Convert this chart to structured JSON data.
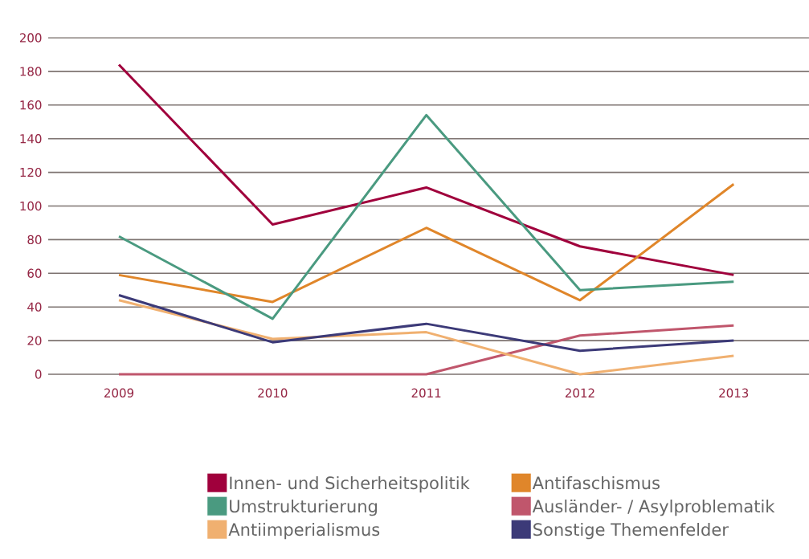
{
  "chart_data": {
    "type": "line",
    "categories": [
      "2009",
      "2010",
      "2011",
      "2012",
      "2013"
    ],
    "series": [
      {
        "name": "Innen- und Sicherheitspolitik",
        "color": "#a0003c",
        "values": [
          184,
          89,
          111,
          76,
          59
        ]
      },
      {
        "name": "Antifaschismus",
        "color": "#e0862a",
        "values": [
          59,
          43,
          87,
          44,
          113
        ]
      },
      {
        "name": "Umstrukturierung",
        "color": "#4a9a80",
        "values": [
          82,
          33,
          154,
          50,
          55
        ]
      },
      {
        "name": "Ausländer- / Asylproblematik",
        "color": "#c0566c",
        "values": [
          0,
          0,
          0,
          23,
          29
        ]
      },
      {
        "name": "Antiimperialismus",
        "color": "#f0b070",
        "values": [
          44,
          21,
          25,
          0,
          11
        ]
      },
      {
        "name": "Sonstige Themenfelder",
        "color": "#3c3a78",
        "values": [
          47,
          19,
          30,
          14,
          20
        ]
      }
    ],
    "ylim": [
      0,
      200
    ],
    "yticks": [
      0,
      20,
      40,
      60,
      80,
      100,
      120,
      140,
      160,
      180,
      200
    ],
    "grid": "y",
    "legend": "bottom",
    "marker": "none",
    "line_style": "solid"
  }
}
